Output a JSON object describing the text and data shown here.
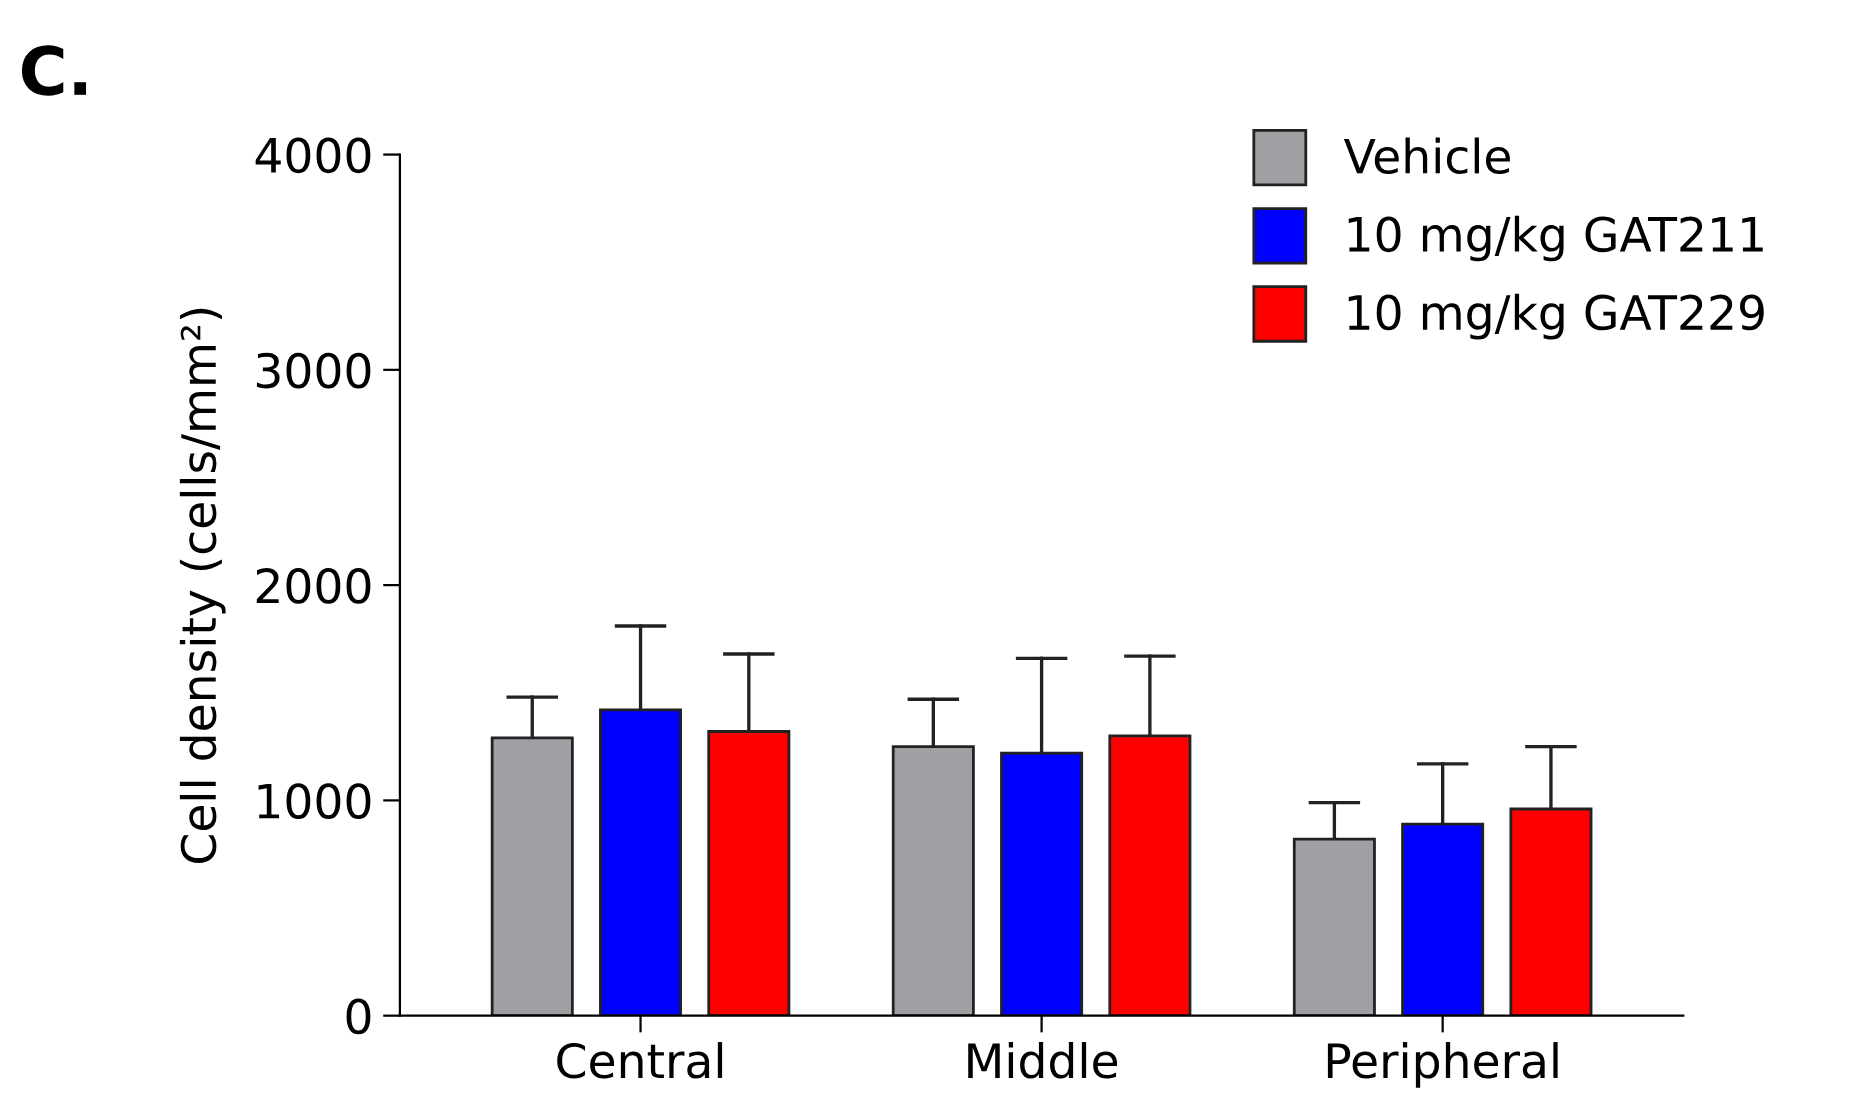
{
  "chart_data": {
    "type": "bar",
    "title": "C.",
    "ylabel": "Cell density (cells/mm²)",
    "categories": [
      "Central",
      "Middle",
      "Peripheral"
    ],
    "series": [
      {
        "name": "Vehicle",
        "color": "#a09fa4",
        "values": [
          1290,
          1250,
          820
        ],
        "errors": [
          [
            1290,
            1480
          ],
          [
            1250,
            1470
          ],
          [
            820,
            990
          ]
        ]
      },
      {
        "name": "10 mg/kg GAT211",
        "color": "#0000ff",
        "values": [
          1420,
          1220,
          890
        ],
        "errors": [
          [
            1420,
            1810
          ],
          [
            1220,
            1660
          ],
          [
            890,
            1170
          ]
        ]
      },
      {
        "name": "10 mg/kg GAT229",
        "color": "#ff0000",
        "values": [
          1320,
          1300,
          960
        ],
        "errors": [
          [
            1320,
            1680
          ],
          [
            1300,
            1670
          ],
          [
            960,
            1250
          ]
        ]
      }
    ],
    "ylim": [
      0,
      4000
    ],
    "yticks": [
      0,
      1000,
      2000,
      3000,
      4000
    ],
    "grid": false,
    "legend": "top right"
  }
}
